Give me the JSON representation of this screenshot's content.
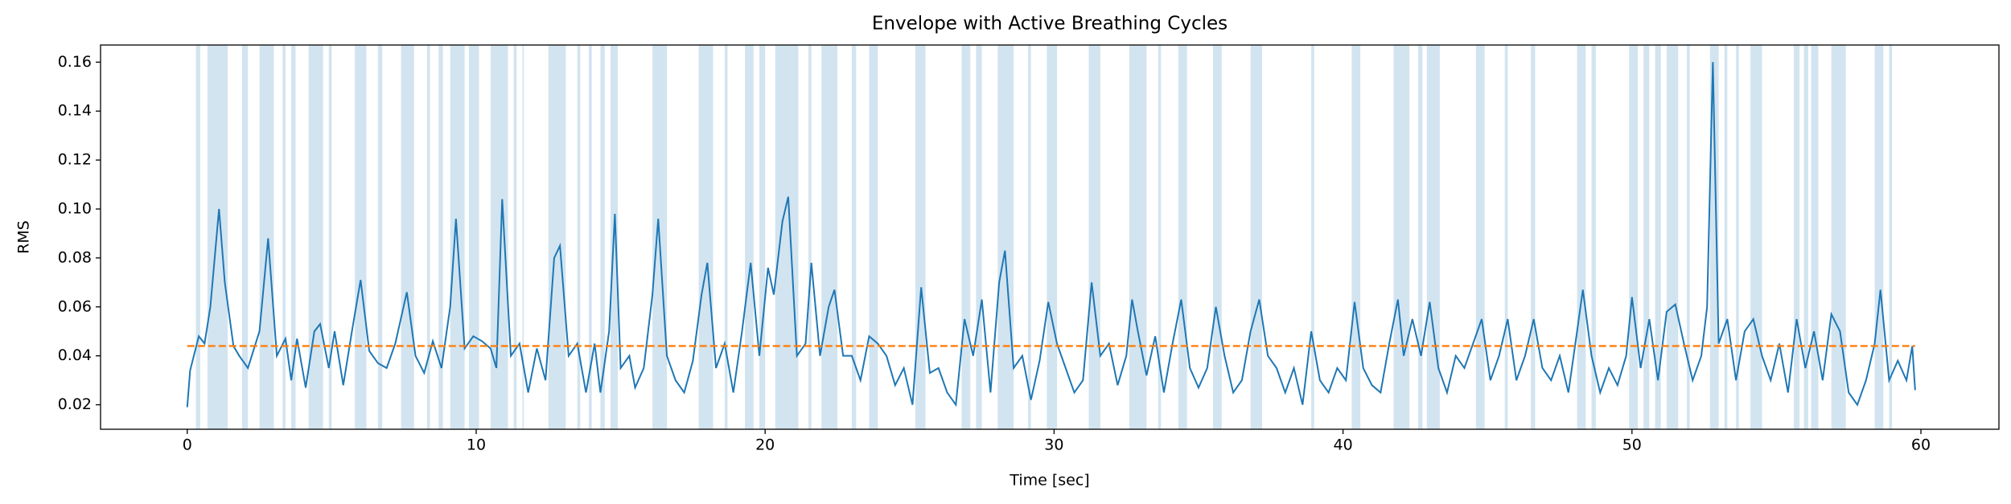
{
  "chart_data": {
    "type": "line",
    "title": "Envelope with Active Breathing Cycles",
    "x_label": "Time [sec]",
    "y_label": "RMS",
    "x": [
      0,
      0.1,
      0.4,
      0.6,
      0.8,
      1.1,
      1.3,
      1.6,
      1.8,
      2.1,
      2.5,
      2.8,
      3.1,
      3.4,
      3.6,
      3.8,
      4.1,
      4.4,
      4.6,
      4.9,
      5.1,
      5.4,
      5.7,
      6.0,
      6.3,
      6.6,
      6.9,
      7.2,
      7.6,
      7.9,
      8.2,
      8.5,
      8.8,
      9.1,
      9.3,
      9.6,
      9.9,
      10.2,
      10.5,
      10.7,
      10.9,
      11.2,
      11.5,
      11.8,
      12.1,
      12.4,
      12.7,
      12.9,
      13.2,
      13.5,
      13.8,
      14.1,
      14.3,
      14.6,
      14.8,
      15.0,
      15.3,
      15.5,
      15.8,
      16.1,
      16.3,
      16.6,
      16.9,
      17.2,
      17.5,
      17.8,
      18.0,
      18.3,
      18.6,
      18.9,
      19.2,
      19.5,
      19.8,
      20.1,
      20.3,
      20.6,
      20.8,
      21.1,
      21.4,
      21.6,
      21.9,
      22.2,
      22.4,
      22.7,
      23.0,
      23.3,
      23.6,
      23.9,
      24.2,
      24.5,
      24.8,
      25.1,
      25.4,
      25.7,
      26.0,
      26.3,
      26.6,
      26.9,
      27.2,
      27.5,
      27.8,
      28.1,
      28.3,
      28.6,
      28.9,
      29.2,
      29.5,
      29.8,
      30.1,
      30.4,
      30.7,
      31.0,
      31.3,
      31.6,
      31.9,
      32.2,
      32.5,
      32.7,
      32.9,
      33.2,
      33.5,
      33.8,
      34.1,
      34.4,
      34.7,
      35.0,
      35.3,
      35.6,
      35.9,
      36.2,
      36.5,
      36.8,
      37.1,
      37.4,
      37.7,
      38.0,
      38.3,
      38.6,
      38.9,
      39.2,
      39.5,
      39.8,
      40.1,
      40.4,
      40.7,
      41.0,
      41.3,
      41.6,
      41.9,
      42.1,
      42.4,
      42.7,
      43.0,
      43.3,
      43.6,
      43.9,
      44.2,
      44.5,
      44.8,
      45.1,
      45.4,
      45.7,
      46.0,
      46.3,
      46.6,
      46.9,
      47.2,
      47.5,
      47.8,
      48.1,
      48.3,
      48.6,
      48.9,
      49.2,
      49.5,
      49.8,
      50.0,
      50.3,
      50.6,
      50.9,
      51.2,
      51.5,
      51.8,
      52.1,
      52.4,
      52.6,
      52.8,
      53.0,
      53.3,
      53.6,
      53.9,
      54.2,
      54.5,
      54.8,
      55.1,
      55.4,
      55.7,
      56.0,
      56.3,
      56.6,
      56.9,
      57.2,
      57.5,
      57.8,
      58.1,
      58.4,
      58.6,
      58.9,
      59.2,
      59.5,
      59.7,
      59.8
    ],
    "values": [
      0.019,
      0.034,
      0.048,
      0.045,
      0.06,
      0.1,
      0.07,
      0.044,
      0.04,
      0.035,
      0.05,
      0.088,
      0.04,
      0.047,
      0.03,
      0.047,
      0.027,
      0.05,
      0.053,
      0.035,
      0.05,
      0.028,
      0.05,
      0.071,
      0.042,
      0.037,
      0.035,
      0.045,
      0.066,
      0.04,
      0.033,
      0.046,
      0.035,
      0.06,
      0.096,
      0.043,
      0.048,
      0.046,
      0.043,
      0.035,
      0.104,
      0.04,
      0.045,
      0.025,
      0.043,
      0.03,
      0.08,
      0.085,
      0.04,
      0.045,
      0.025,
      0.045,
      0.025,
      0.05,
      0.098,
      0.035,
      0.04,
      0.027,
      0.035,
      0.065,
      0.096,
      0.04,
      0.03,
      0.025,
      0.038,
      0.065,
      0.078,
      0.035,
      0.045,
      0.025,
      0.05,
      0.078,
      0.04,
      0.076,
      0.065,
      0.095,
      0.105,
      0.04,
      0.045,
      0.078,
      0.04,
      0.06,
      0.067,
      0.04,
      0.04,
      0.03,
      0.048,
      0.045,
      0.04,
      0.028,
      0.035,
      0.02,
      0.068,
      0.033,
      0.035,
      0.025,
      0.02,
      0.055,
      0.04,
      0.063,
      0.025,
      0.07,
      0.083,
      0.035,
      0.04,
      0.022,
      0.038,
      0.062,
      0.045,
      0.035,
      0.025,
      0.03,
      0.07,
      0.04,
      0.045,
      0.028,
      0.04,
      0.063,
      0.05,
      0.032,
      0.048,
      0.025,
      0.045,
      0.063,
      0.035,
      0.027,
      0.035,
      0.06,
      0.04,
      0.025,
      0.03,
      0.05,
      0.063,
      0.04,
      0.035,
      0.025,
      0.035,
      0.02,
      0.05,
      0.03,
      0.025,
      0.035,
      0.03,
      0.062,
      0.035,
      0.028,
      0.025,
      0.045,
      0.063,
      0.04,
      0.055,
      0.04,
      0.062,
      0.035,
      0.025,
      0.04,
      0.035,
      0.045,
      0.055,
      0.03,
      0.04,
      0.055,
      0.03,
      0.04,
      0.055,
      0.035,
      0.03,
      0.04,
      0.025,
      0.05,
      0.067,
      0.04,
      0.025,
      0.035,
      0.028,
      0.04,
      0.064,
      0.035,
      0.055,
      0.03,
      0.058,
      0.061,
      0.045,
      0.03,
      0.04,
      0.06,
      0.16,
      0.045,
      0.055,
      0.03,
      0.05,
      0.055,
      0.04,
      0.03,
      0.045,
      0.025,
      0.055,
      0.035,
      0.05,
      0.03,
      0.057,
      0.05,
      0.025,
      0.02,
      0.03,
      0.045,
      0.067,
      0.03,
      0.038,
      0.03,
      0.044,
      0.026
    ],
    "color": "#1f77b4",
    "threshold": 0.044,
    "threshold_color": "#ff7f0e",
    "span_color": "#1f77b4",
    "spans": [
      [
        0.3,
        0.45
      ],
      [
        0.7,
        1.4
      ],
      [
        1.9,
        2.1
      ],
      [
        2.5,
        3.0
      ],
      [
        3.3,
        3.4
      ],
      [
        3.6,
        3.75
      ],
      [
        4.2,
        4.7
      ],
      [
        4.9,
        5.0
      ],
      [
        5.8,
        6.2
      ],
      [
        6.6,
        6.75
      ],
      [
        7.4,
        7.85
      ],
      [
        8.3,
        8.4
      ],
      [
        8.7,
        8.85
      ],
      [
        9.1,
        9.6
      ],
      [
        9.75,
        10.1
      ],
      [
        10.5,
        11.1
      ],
      [
        11.3,
        11.4
      ],
      [
        11.6,
        11.65
      ],
      [
        12.5,
        13.1
      ],
      [
        13.5,
        13.6
      ],
      [
        13.9,
        14.0
      ],
      [
        14.3,
        14.45
      ],
      [
        14.65,
        14.9
      ],
      [
        16.1,
        16.6
      ],
      [
        17.7,
        18.2
      ],
      [
        18.6,
        18.7
      ],
      [
        19.3,
        19.6
      ],
      [
        19.8,
        20.0
      ],
      [
        20.35,
        21.15
      ],
      [
        21.5,
        21.6
      ],
      [
        21.95,
        22.5
      ],
      [
        23.0,
        23.15
      ],
      [
        23.6,
        23.9
      ],
      [
        25.2,
        25.55
      ],
      [
        26.8,
        27.1
      ],
      [
        27.3,
        27.5
      ],
      [
        28.05,
        28.6
      ],
      [
        29.1,
        29.2
      ],
      [
        29.75,
        30.1
      ],
      [
        31.2,
        31.6
      ],
      [
        32.6,
        33.2
      ],
      [
        33.6,
        33.7
      ],
      [
        34.3,
        34.6
      ],
      [
        35.5,
        35.8
      ],
      [
        36.8,
        37.2
      ],
      [
        38.9,
        39.0
      ],
      [
        40.3,
        40.6
      ],
      [
        41.75,
        42.3
      ],
      [
        42.6,
        42.75
      ],
      [
        42.9,
        43.35
      ],
      [
        44.6,
        44.9
      ],
      [
        45.6,
        45.7
      ],
      [
        46.5,
        46.65
      ],
      [
        48.1,
        48.4
      ],
      [
        48.6,
        48.75
      ],
      [
        49.9,
        50.2
      ],
      [
        50.4,
        50.6
      ],
      [
        50.8,
        51.0
      ],
      [
        51.2,
        51.6
      ],
      [
        51.9,
        52.0
      ],
      [
        52.7,
        53.0
      ],
      [
        53.2,
        53.3
      ],
      [
        53.6,
        53.7
      ],
      [
        54.1,
        54.5
      ],
      [
        55.6,
        55.8
      ],
      [
        55.95,
        56.1
      ],
      [
        56.2,
        56.45
      ],
      [
        56.9,
        57.4
      ],
      [
        58.4,
        58.7
      ],
      [
        58.9,
        59.0
      ]
    ],
    "xlim": [
      -3,
      62.7
    ],
    "ylim": [
      0.01,
      0.167
    ],
    "xticks": [
      0,
      10,
      20,
      30,
      40,
      50,
      60
    ],
    "yticks": [
      0.02,
      0.04,
      0.06,
      0.08,
      {
        "value": 0.1,
        "label": "0.10"
      },
      0.12,
      0.14,
      0.16
    ]
  }
}
